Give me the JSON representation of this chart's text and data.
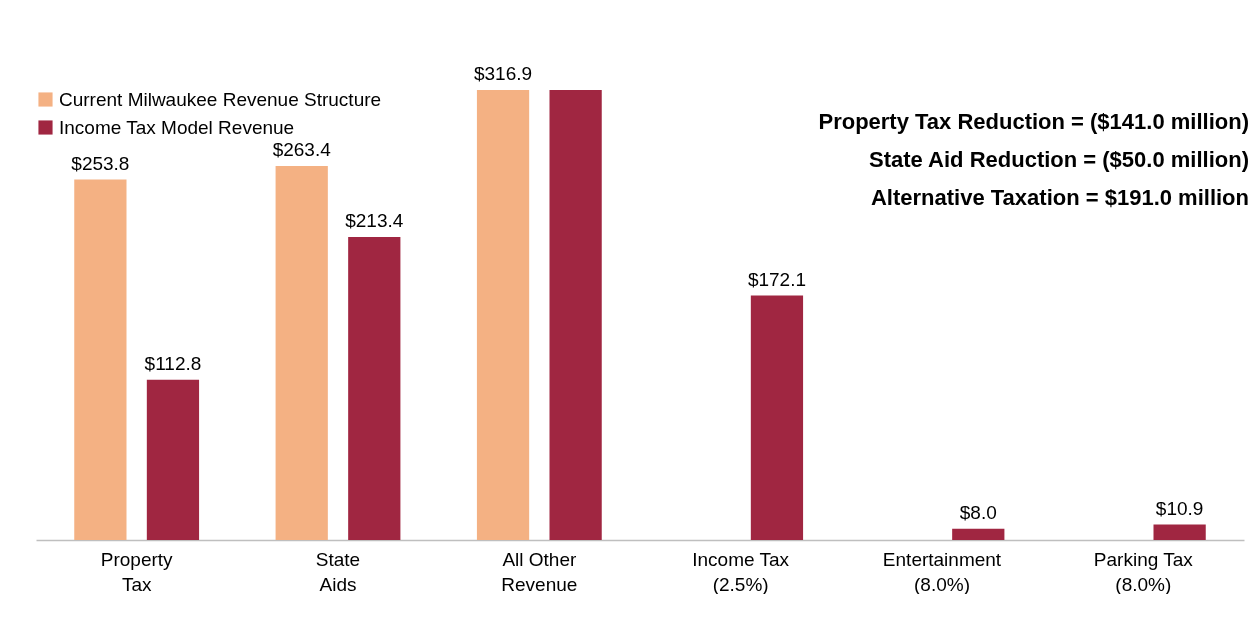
{
  "chart_data": {
    "type": "bar",
    "categories": [
      "Property\nTax",
      "State\nAids",
      "All Other\nRevenue",
      "Income Tax\n(2.5%)",
      "Entertainment\n(8.0%)",
      "Parking Tax\n(8.0%)"
    ],
    "series": [
      {
        "name": "Current Milwaukee Revenue Structure",
        "color": "#f4b183",
        "values": [
          253.8,
          263.4,
          316.9,
          null,
          null,
          null
        ],
        "value_labels": [
          "$253.8",
          "$263.4",
          "$316.9",
          null,
          null,
          null
        ]
      },
      {
        "name": "Income Tax Model Revenue",
        "color": "#a02641",
        "values": [
          112.8,
          213.4,
          316.9,
          172.1,
          8.0,
          10.9
        ],
        "value_labels": [
          "$112.8",
          "$213.4",
          null,
          "$172.1",
          "$8.0",
          "$10.9"
        ]
      }
    ],
    "annotations": [
      "Property Tax Reduction = ($141.0 million)",
      "State Aid Reduction = ($50.0 million)",
      "Alternative Taxation = $191.0 million"
    ],
    "legend": "top left",
    "grid": false
  }
}
